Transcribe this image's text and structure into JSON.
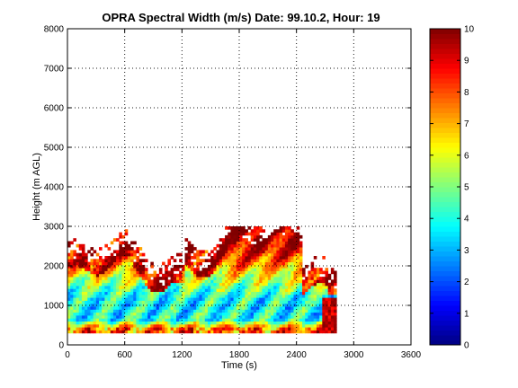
{
  "chart_data": {
    "type": "heatmap",
    "title": "OPRA Spectral Width (m/s)  Date: 99.10.2, Hour: 19",
    "xlabel": "Time (s)",
    "ylabel": "Height (m AGL)",
    "xlim": [
      0,
      3600
    ],
    "ylim": [
      0,
      8000
    ],
    "xticks": [
      "0",
      "600",
      "1200",
      "1800",
      "2400",
      "3000",
      "3600"
    ],
    "yticks": [
      "0",
      "1000",
      "2000",
      "3000",
      "4000",
      "5000",
      "6000",
      "7000",
      "8000"
    ],
    "grid": true,
    "colorbar": {
      "range": [
        0,
        10
      ],
      "ticks": [
        "0",
        "1",
        "2",
        "3",
        "4",
        "5",
        "6",
        "7",
        "8",
        "9",
        "10"
      ],
      "colormap": "jet"
    },
    "data_extent": {
      "time_range_s": [
        0,
        2800
      ],
      "height_range_m": [
        300,
        3000
      ]
    },
    "value_profile": [
      {
        "height_m": 400,
        "typical_value": 7.5
      },
      {
        "height_m": 600,
        "typical_value": 4.0
      },
      {
        "height_m": 900,
        "typical_value": 3.8
      },
      {
        "height_m": 1200,
        "typical_value": 4.0
      },
      {
        "height_m": 1500,
        "typical_value": 5.2
      },
      {
        "height_m": 1800,
        "typical_value": 6.5
      },
      {
        "height_m": 2100,
        "typical_value": 8.0
      },
      {
        "height_m": 2500,
        "typical_value": 9.0
      },
      {
        "height_m": 2900,
        "typical_value": 9.5
      }
    ]
  }
}
